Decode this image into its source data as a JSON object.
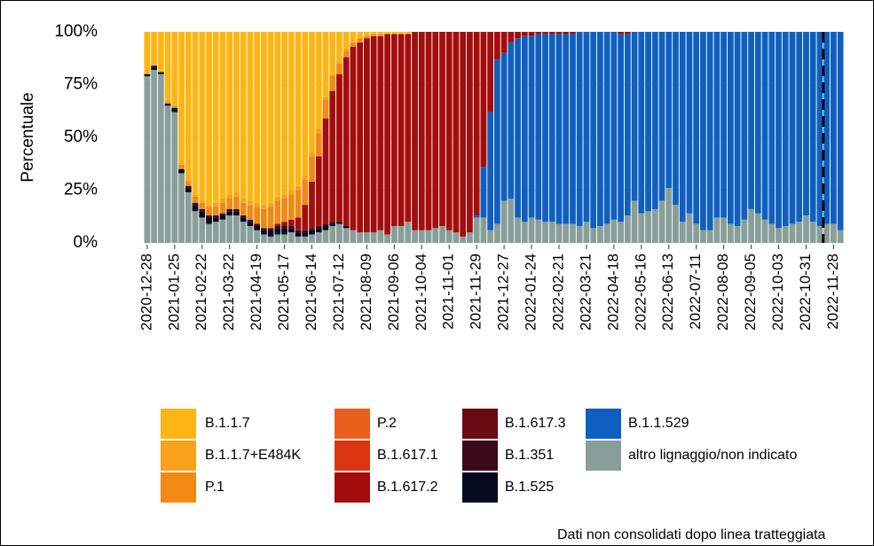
{
  "chart_data": {
    "type": "stacked_bar",
    "y_label": "Percentuale",
    "annotation": "Dati non consolidati dopo linea tratteggiata",
    "vline_at": 98.5,
    "grid": true,
    "ylim": [
      0,
      100
    ],
    "yticks": [
      {
        "value": 0,
        "label": "0%"
      },
      {
        "value": 25,
        "label": "25%"
      },
      {
        "value": 50,
        "label": "50%"
      },
      {
        "value": 75,
        "label": "75%"
      },
      {
        "value": 100,
        "label": "100%"
      }
    ],
    "categories": [
      "2020-12-28",
      null,
      null,
      null,
      "2021-01-25",
      null,
      null,
      null,
      "2021-02-22",
      null,
      null,
      null,
      "2021-03-22",
      null,
      null,
      null,
      "2021-04-19",
      null,
      null,
      null,
      "2021-05-17",
      null,
      null,
      null,
      "2021-06-14",
      null,
      null,
      null,
      "2021-07-12",
      null,
      null,
      null,
      "2021-08-09",
      null,
      null,
      null,
      "2021-09-06",
      null,
      null,
      null,
      "2021-10-04",
      null,
      null,
      null,
      "2021-11-01",
      null,
      null,
      null,
      "2021-11-29",
      null,
      null,
      null,
      "2021-12-27",
      null,
      null,
      null,
      "2022-01-24",
      null,
      null,
      null,
      "2022-02-21",
      null,
      null,
      null,
      "2022-03-21",
      null,
      null,
      null,
      "2022-04-18",
      null,
      null,
      null,
      "2022-05-16",
      null,
      null,
      null,
      "2022-06-13",
      null,
      null,
      null,
      "2022-07-11",
      null,
      null,
      null,
      "2022-08-08",
      null,
      null,
      null,
      "2022-09-05",
      null,
      null,
      null,
      "2022-10-03",
      null,
      null,
      null,
      "2022-10-31",
      null,
      null,
      null,
      "2022-11-28",
      null
    ],
    "series": [
      {
        "name": "B.1.1.7",
        "color": "#FDB515",
        "values": [
          20,
          16,
          19,
          33,
          35,
          62,
          70,
          77,
          80,
          82,
          81,
          79,
          77,
          76,
          79,
          80,
          81,
          82,
          81,
          78,
          77,
          75,
          73,
          68,
          57,
          46,
          31,
          20,
          14,
          8,
          5,
          3,
          2,
          1,
          1,
          1,
          1,
          1,
          1,
          0,
          0,
          0,
          0,
          0,
          0,
          0,
          0,
          0,
          0,
          0,
          0,
          0,
          0,
          0,
          0,
          0,
          0,
          0,
          0,
          0,
          0,
          0,
          0,
          0,
          0,
          0,
          0,
          0,
          0,
          0,
          0,
          0,
          0,
          0,
          0,
          0,
          0,
          0,
          0,
          0,
          0,
          0,
          0,
          0,
          0,
          0,
          0,
          0,
          0,
          0,
          0,
          0,
          0,
          0,
          0,
          0,
          0,
          0,
          0,
          0,
          0,
          0
        ]
      },
      {
        "name": "B.1.1.7+E484K",
        "color": "#F8A11A",
        "values": [
          0,
          0,
          0,
          0,
          0,
          1,
          1,
          1,
          1,
          1,
          2,
          2,
          2,
          2,
          2,
          2,
          2,
          2,
          2,
          2,
          2,
          2,
          2,
          2,
          2,
          2,
          1,
          1,
          1,
          1,
          0,
          0,
          0,
          0,
          0,
          0,
          0,
          0,
          0,
          0,
          0,
          0,
          0,
          0,
          0,
          0,
          0,
          0,
          0,
          0,
          0,
          0,
          0,
          0,
          0,
          0,
          0,
          0,
          0,
          0,
          0,
          0,
          0,
          0,
          0,
          0,
          0,
          0,
          0,
          0,
          0,
          0,
          0,
          0,
          0,
          0,
          0,
          0,
          0,
          0,
          0,
          0,
          0,
          0,
          0,
          0,
          0,
          0,
          0,
          0,
          0,
          0,
          0,
          0,
          0,
          0,
          0,
          0,
          0,
          0,
          0,
          0
        ]
      },
      {
        "name": "P.1",
        "color": "#F08A15",
        "values": [
          0,
          0,
          0,
          1,
          1,
          2,
          2,
          3,
          3,
          4,
          4,
          5,
          5,
          6,
          6,
          7,
          8,
          9,
          10,
          11,
          11,
          12,
          13,
          12,
          12,
          11,
          9,
          7,
          5,
          3,
          2,
          2,
          1,
          1,
          1,
          0,
          0,
          0,
          0,
          0,
          0,
          0,
          0,
          0,
          0,
          0,
          0,
          0,
          0,
          0,
          0,
          0,
          0,
          0,
          0,
          0,
          0,
          0,
          0,
          0,
          0,
          0,
          0,
          0,
          0,
          0,
          0,
          0,
          0,
          0,
          0,
          0,
          0,
          0,
          0,
          0,
          0,
          0,
          0,
          0,
          0,
          0,
          0,
          0,
          0,
          0,
          0,
          0,
          0,
          0,
          0,
          0,
          0,
          0,
          0,
          0,
          0,
          0,
          0,
          0,
          0,
          0
        ]
      },
      {
        "name": "P.2",
        "color": "#E8601C",
        "values": [
          0,
          0,
          0,
          0,
          0,
          0,
          0,
          0,
          0,
          0,
          0,
          0,
          0,
          0,
          0,
          0,
          0,
          0,
          0,
          0,
          0,
          0,
          0,
          0,
          0,
          0,
          0,
          0,
          0,
          0,
          0,
          0,
          0,
          0,
          0,
          0,
          0,
          0,
          0,
          0,
          0,
          0,
          0,
          0,
          0,
          0,
          0,
          0,
          0,
          0,
          0,
          0,
          0,
          0,
          0,
          0,
          0,
          0,
          0,
          0,
          0,
          0,
          0,
          0,
          0,
          0,
          0,
          0,
          0,
          0,
          0,
          0,
          0,
          0,
          0,
          0,
          0,
          0,
          0,
          0,
          0,
          0,
          0,
          0,
          0,
          0,
          0,
          0,
          0,
          0,
          0,
          0,
          0,
          0,
          0,
          0,
          0,
          0,
          0,
          0,
          0,
          0
        ]
      },
      {
        "name": "B.1.617.1",
        "color": "#DC3512",
        "values": [
          0,
          0,
          0,
          0,
          0,
          0,
          0,
          0,
          0,
          0,
          0,
          0,
          0,
          0,
          0,
          0,
          0,
          0,
          0,
          0,
          0,
          0,
          0,
          0,
          0,
          0,
          0,
          0,
          0,
          0,
          0,
          0,
          0,
          0,
          0,
          0,
          0,
          0,
          0,
          0,
          0,
          0,
          0,
          0,
          0,
          0,
          0,
          0,
          0,
          0,
          0,
          0,
          0,
          0,
          0,
          0,
          0,
          0,
          0,
          0,
          0,
          0,
          0,
          0,
          0,
          0,
          0,
          0,
          0,
          0,
          0,
          0,
          0,
          0,
          0,
          0,
          0,
          0,
          0,
          0,
          0,
          0,
          0,
          0,
          0,
          0,
          0,
          0,
          0,
          0,
          0,
          0,
          0,
          0,
          0,
          0,
          0,
          0,
          0,
          0,
          0,
          0
        ]
      },
      {
        "name": "B.1.617.2",
        "color": "#A30D0D",
        "values": [
          0,
          0,
          0,
          0,
          0,
          0,
          0,
          0,
          0,
          0,
          0,
          0,
          0,
          0,
          0,
          0,
          0,
          0,
          0,
          1,
          2,
          3,
          6,
          12,
          22,
          33,
          50,
          62,
          70,
          80,
          87,
          90,
          92,
          93,
          92,
          95,
          91,
          91,
          89,
          94,
          94,
          94,
          93,
          92,
          94,
          95,
          97,
          95,
          87,
          64,
          38,
          13,
          10,
          5,
          3,
          2,
          2,
          1,
          1,
          1,
          1,
          1,
          1,
          0,
          0,
          0,
          0,
          0,
          0,
          1,
          1,
          0,
          0,
          0,
          0,
          0,
          0,
          0,
          0,
          0,
          0,
          0,
          0,
          0,
          0,
          0,
          0,
          0,
          0,
          0,
          0,
          0,
          0,
          0,
          0,
          0,
          0,
          0,
          0,
          0,
          0,
          0
        ]
      },
      {
        "name": "B.1.617.3",
        "color": "#6A0A12",
        "values": [
          0,
          0,
          0,
          0,
          0,
          0,
          0,
          0,
          0,
          0,
          0,
          0,
          0,
          0,
          0,
          0,
          0,
          0,
          0,
          0,
          0,
          0,
          0,
          0,
          0,
          0,
          0,
          0,
          0,
          0,
          0,
          0,
          0,
          0,
          0,
          0,
          0,
          0,
          0,
          0,
          0,
          0,
          0,
          0,
          0,
          0,
          0,
          0,
          0,
          0,
          0,
          0,
          0,
          0,
          0,
          0,
          0,
          0,
          0,
          0,
          0,
          0,
          0,
          0,
          0,
          0,
          0,
          0,
          0,
          0,
          0,
          0,
          0,
          0,
          0,
          0,
          0,
          0,
          0,
          0,
          0,
          0,
          0,
          0,
          0,
          0,
          0,
          0,
          0,
          0,
          0,
          0,
          0,
          0,
          0,
          0,
          0,
          0,
          0,
          0,
          0,
          0
        ]
      },
      {
        "name": "B.1.351",
        "color": "#3B0A17",
        "values": [
          0,
          1,
          0,
          0,
          0,
          0,
          1,
          1,
          1,
          1,
          1,
          1,
          1,
          1,
          1,
          1,
          1,
          1,
          1,
          1,
          1,
          1,
          1,
          1,
          1,
          1,
          1,
          1,
          0,
          0,
          0,
          0,
          0,
          0,
          0,
          0,
          0,
          0,
          0,
          0,
          0,
          0,
          0,
          0,
          0,
          0,
          0,
          0,
          0,
          0,
          0,
          0,
          0,
          0,
          0,
          0,
          0,
          0,
          0,
          0,
          0,
          0,
          0,
          0,
          0,
          0,
          0,
          0,
          0,
          0,
          0,
          0,
          0,
          0,
          0,
          0,
          0,
          0,
          0,
          0,
          0,
          0,
          0,
          0,
          0,
          0,
          0,
          0,
          0,
          0,
          0,
          0,
          0,
          0,
          0,
          0,
          0,
          0,
          0,
          0,
          0,
          0
        ]
      },
      {
        "name": "B.1.525",
        "color": "#050A1E",
        "values": [
          1,
          1,
          1,
          1,
          2,
          2,
          2,
          3,
          3,
          3,
          2,
          2,
          2,
          2,
          2,
          2,
          2,
          2,
          3,
          3,
          3,
          2,
          2,
          2,
          2,
          2,
          2,
          1,
          1,
          1,
          0,
          0,
          0,
          0,
          0,
          0,
          0,
          0,
          0,
          0,
          0,
          0,
          0,
          0,
          0,
          0,
          0,
          0,
          0,
          0,
          0,
          0,
          0,
          0,
          0,
          0,
          0,
          0,
          0,
          0,
          0,
          0,
          0,
          0,
          0,
          0,
          0,
          0,
          0,
          0,
          0,
          0,
          0,
          0,
          0,
          0,
          0,
          0,
          0,
          0,
          0,
          0,
          0,
          0,
          0,
          0,
          0,
          0,
          0,
          0,
          0,
          0,
          0,
          0,
          0,
          0,
          0,
          0,
          0,
          0,
          0,
          0
        ]
      },
      {
        "name": "B.1.1.529",
        "color": "#0F5FBE",
        "values": [
          0,
          0,
          0,
          0,
          0,
          0,
          0,
          0,
          0,
          0,
          0,
          0,
          0,
          0,
          0,
          0,
          0,
          0,
          0,
          0,
          0,
          0,
          0,
          0,
          0,
          0,
          0,
          0,
          0,
          0,
          0,
          0,
          0,
          0,
          0,
          0,
          0,
          0,
          0,
          0,
          0,
          0,
          0,
          0,
          0,
          0,
          0,
          0,
          1,
          24,
          56,
          78,
          70,
          74,
          85,
          88,
          86,
          88,
          89,
          89,
          90,
          90,
          90,
          92,
          90,
          93,
          92,
          91,
          89,
          89,
          86,
          80,
          86,
          85,
          84,
          80,
          74,
          82,
          90,
          86,
          91,
          94,
          94,
          88,
          88,
          91,
          92,
          89,
          84,
          86,
          89,
          91,
          93,
          92,
          91,
          90,
          87,
          90,
          92,
          91,
          91,
          94
        ]
      },
      {
        "name": "altro lignaggio/non indicato",
        "color": "#889E99",
        "values": [
          79,
          82,
          80,
          65,
          62,
          33,
          24,
          15,
          12,
          9,
          10,
          11,
          13,
          13,
          10,
          8,
          6,
          4,
          3,
          4,
          4,
          5,
          3,
          3,
          4,
          5,
          6,
          8,
          9,
          7,
          6,
          5,
          5,
          5,
          6,
          4,
          8,
          8,
          10,
          6,
          6,
          6,
          7,
          8,
          6,
          5,
          3,
          5,
          12,
          12,
          6,
          9,
          20,
          21,
          12,
          10,
          12,
          11,
          10,
          10,
          9,
          9,
          9,
          8,
          10,
          7,
          8,
          9,
          11,
          10,
          13,
          20,
          14,
          15,
          16,
          20,
          26,
          18,
          10,
          14,
          9,
          6,
          6,
          12,
          12,
          9,
          8,
          11,
          16,
          14,
          11,
          9,
          7,
          8,
          9,
          10,
          13,
          10,
          8,
          9,
          9,
          6
        ]
      }
    ]
  }
}
